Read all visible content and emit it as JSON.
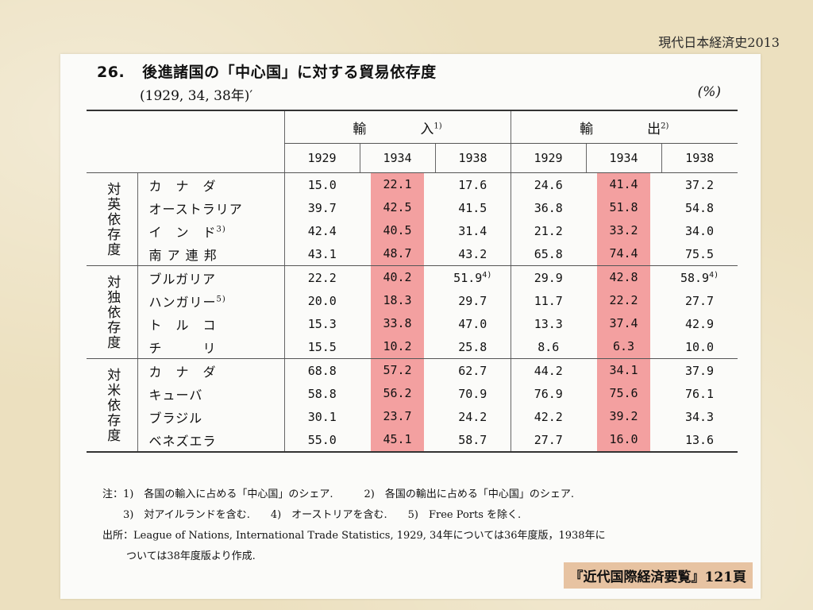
{
  "corner_title": "現代日本経済史2013",
  "table_title": {
    "number": "26.",
    "text": "後進諸国の「中心国」に対する貿易依存度"
  },
  "years_note": "(1929, 34, 38年)′",
  "unit": "(%)",
  "header": {
    "imports": "輸　　　　入",
    "imports_note": "1)",
    "exports": "輸　　　　出",
    "exports_note": "2)",
    "years": [
      "1929",
      "1934",
      "1938",
      "1929",
      "1934",
      "1938"
    ]
  },
  "groups": [
    {
      "label": "対英依存度",
      "rows": [
        {
          "country": "カ　ナ　ダ",
          "note": "",
          "values": [
            "15.0",
            "22.1",
            "17.6",
            "24.6",
            "41.4",
            "37.2"
          ],
          "value_notes": [
            "",
            "",
            "",
            "",
            "",
            ""
          ]
        },
        {
          "country": "オーストラリア",
          "note": "",
          "values": [
            "39.7",
            "42.5",
            "41.5",
            "36.8",
            "51.8",
            "54.8"
          ],
          "value_notes": [
            "",
            "",
            "",
            "",
            "",
            ""
          ]
        },
        {
          "country": "イ　ン　ド",
          "note": "3)",
          "values": [
            "42.4",
            "40.5",
            "31.4",
            "21.2",
            "33.2",
            "34.0"
          ],
          "value_notes": [
            "",
            "",
            "",
            "",
            "",
            ""
          ]
        },
        {
          "country": "南 ア 連 邦",
          "note": "",
          "values": [
            "43.1",
            "48.7",
            "43.2",
            "65.8",
            "74.4",
            "75.5"
          ],
          "value_notes": [
            "",
            "",
            "",
            "",
            "",
            ""
          ]
        }
      ]
    },
    {
      "label": "対独依存度",
      "rows": [
        {
          "country": "ブルガリア",
          "note": "",
          "values": [
            "22.2",
            "40.2",
            "51.9",
            "29.9",
            "42.8",
            "58.9"
          ],
          "value_notes": [
            "",
            "",
            "4)",
            "",
            "",
            "4)"
          ]
        },
        {
          "country": "ハンガリー",
          "note": "5)",
          "values": [
            "20.0",
            "18.3",
            "29.7",
            "11.7",
            "22.2",
            "27.7"
          ],
          "value_notes": [
            "",
            "",
            "",
            "",
            "",
            ""
          ]
        },
        {
          "country": "ト　ル　コ",
          "note": "",
          "values": [
            "15.3",
            "33.8",
            "47.0",
            "13.3",
            "37.4",
            "42.9"
          ],
          "value_notes": [
            "",
            "",
            "",
            "",
            "",
            ""
          ]
        },
        {
          "country": "チ　　　リ",
          "note": "",
          "values": [
            "15.5",
            "10.2",
            "25.8",
            "8.6",
            "6.3",
            "10.0"
          ],
          "value_notes": [
            "",
            "",
            "",
            "",
            "",
            ""
          ]
        }
      ]
    },
    {
      "label": "対米依存度",
      "rows": [
        {
          "country": "カ　ナ　ダ",
          "note": "",
          "values": [
            "68.8",
            "57.2",
            "62.7",
            "44.2",
            "34.1",
            "37.9"
          ],
          "value_notes": [
            "",
            "",
            "",
            "",
            "",
            ""
          ]
        },
        {
          "country": "キューバ",
          "note": "",
          "values": [
            "58.8",
            "56.2",
            "70.9",
            "76.9",
            "75.6",
            "76.1"
          ],
          "value_notes": [
            "",
            "",
            "",
            "",
            "",
            ""
          ]
        },
        {
          "country": "ブラジル",
          "note": "",
          "values": [
            "30.1",
            "23.7",
            "24.2",
            "42.2",
            "39.2",
            "34.3"
          ],
          "value_notes": [
            "",
            "",
            "",
            "",
            "",
            ""
          ]
        },
        {
          "country": "ベネズエラ",
          "note": "",
          "values": [
            "55.0",
            "45.1",
            "58.7",
            "27.7",
            "16.0",
            "13.6"
          ],
          "value_notes": [
            "",
            "",
            "",
            "",
            "",
            ""
          ]
        }
      ]
    }
  ],
  "highlight_color": "#f3a0a0",
  "notes": {
    "line1": "注：1)　各国の輸入に占める「中心国」のシェア.　　　2)　各国の輸出に占める「中心国」のシェア.",
    "line2": "3)　対アイルランドを含む.　　4)　オーストリアを含む.　　5)　Free Ports を除く.",
    "line3": "出所：League of Nations, International Trade Statistics, 1929, 34年については36年度版，1938年に",
    "line4": "ついては38年度版より作成."
  },
  "source_badge": "『近代国際経済要覧』121頁"
}
